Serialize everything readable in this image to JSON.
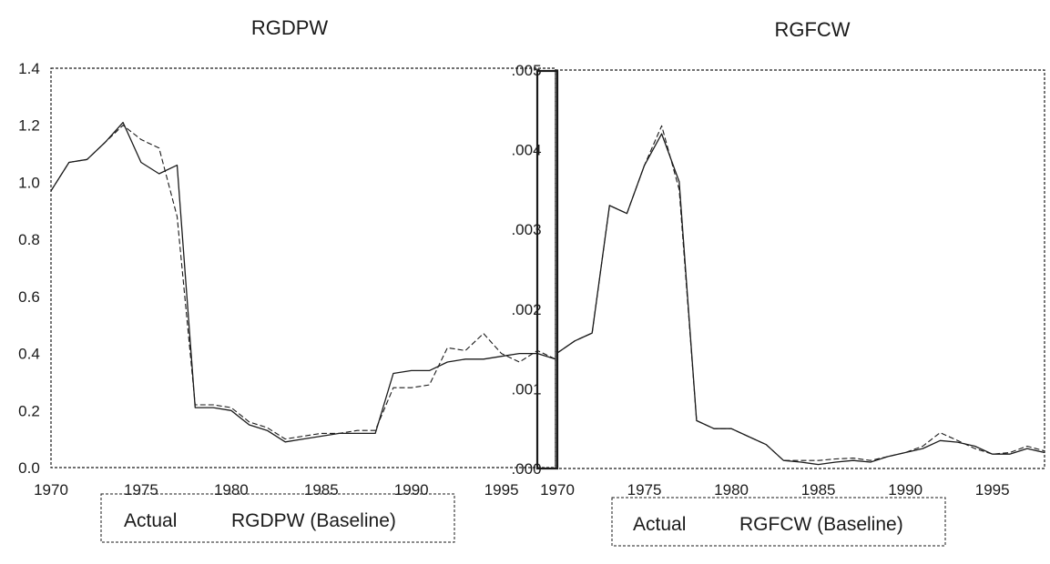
{
  "chart_data": [
    {
      "type": "line",
      "title": "RGDPW",
      "xlabel": "",
      "ylabel": "",
      "xlim": [
        1970,
        1998
      ],
      "ylim": [
        0.0,
        1.4
      ],
      "x_ticks": [
        "1970",
        "1975",
        "1980",
        "1985",
        "1990",
        "1995"
      ],
      "y_ticks": [
        "0.0",
        "0.2",
        "0.4",
        "0.6",
        "0.8",
        "1.0",
        "1.2",
        "1.4"
      ],
      "grid": false,
      "legend": {
        "placement": "bottom",
        "entries": [
          "Actual",
          "RGDPW (Baseline)"
        ]
      },
      "series": [
        {
          "name": "Actual",
          "color": "#1a1a1a",
          "dash": "solid",
          "x": [
            1970,
            1971,
            1972,
            1973,
            1974,
            1975,
            1976,
            1977,
            1978,
            1979,
            1980,
            1981,
            1982,
            1983,
            1984,
            1985,
            1986,
            1987,
            1988,
            1989,
            1990,
            1991,
            1992,
            1993,
            1994,
            1995,
            1996,
            1997,
            1998
          ],
          "y": [
            0.97,
            1.07,
            1.08,
            1.14,
            1.21,
            1.07,
            1.03,
            1.06,
            0.21,
            0.21,
            0.2,
            0.15,
            0.13,
            0.09,
            0.1,
            0.11,
            0.12,
            0.12,
            0.12,
            0.33,
            0.34,
            0.34,
            0.37,
            0.38,
            0.38,
            0.39,
            0.4,
            0.4,
            0.38
          ]
        },
        {
          "name": "RGDPW (Baseline)",
          "color": "#1a1a1a",
          "dash": "dashed",
          "x": [
            1970,
            1971,
            1972,
            1973,
            1974,
            1975,
            1976,
            1977,
            1978,
            1979,
            1980,
            1981,
            1982,
            1983,
            1984,
            1985,
            1986,
            1987,
            1988,
            1989,
            1990,
            1991,
            1992,
            1993,
            1994,
            1995,
            1996,
            1997,
            1998
          ],
          "y": [
            0.97,
            1.07,
            1.08,
            1.14,
            1.2,
            1.15,
            1.12,
            0.88,
            0.22,
            0.22,
            0.21,
            0.16,
            0.14,
            0.1,
            0.11,
            0.12,
            0.12,
            0.13,
            0.13,
            0.28,
            0.28,
            0.29,
            0.42,
            0.41,
            0.47,
            0.4,
            0.37,
            0.41,
            0.38
          ]
        }
      ]
    },
    {
      "type": "line",
      "title": "RGFCW",
      "xlabel": "",
      "ylabel": "",
      "xlim": [
        1970,
        1998
      ],
      "ylim": [
        0.0,
        0.005
      ],
      "x_ticks": [
        "1970",
        "1975",
        "1980",
        "1985",
        "1990",
        "1995"
      ],
      "y_ticks": [
        ".000",
        ".001",
        ".002",
        ".003",
        ".004",
        ".005"
      ],
      "grid": false,
      "legend": {
        "placement": "bottom",
        "entries": [
          "Actual",
          "RGFCW (Baseline)"
        ]
      },
      "series": [
        {
          "name": "Actual",
          "color": "#1a1a1a",
          "dash": "solid",
          "x": [
            1970,
            1971,
            1972,
            1973,
            1974,
            1975,
            1976,
            1977,
            1978,
            1979,
            1980,
            1981,
            1982,
            1983,
            1984,
            1985,
            1986,
            1987,
            1988,
            1989,
            1990,
            1991,
            1992,
            1993,
            1994,
            1995,
            1996,
            1997,
            1998
          ],
          "y": [
            0.00145,
            0.0016,
            0.0017,
            0.0033,
            0.0032,
            0.0038,
            0.0042,
            0.0036,
            0.0006,
            0.0005,
            0.0005,
            0.0004,
            0.0003,
            0.0001,
            8e-05,
            5e-05,
            8e-05,
            0.0001,
            8e-05,
            0.00015,
            0.0002,
            0.00025,
            0.00035,
            0.00033,
            0.00028,
            0.00018,
            0.00018,
            0.00025,
            0.0002
          ]
        },
        {
          "name": "RGFCW (Baseline)",
          "color": "#1a1a1a",
          "dash": "dashed",
          "x": [
            1970,
            1971,
            1972,
            1973,
            1974,
            1975,
            1976,
            1977,
            1978,
            1979,
            1980,
            1981,
            1982,
            1983,
            1984,
            1985,
            1986,
            1987,
            1988,
            1989,
            1990,
            1991,
            1992,
            1993,
            1994,
            1995,
            1996,
            1997,
            1998
          ],
          "y": [
            0.00145,
            0.0016,
            0.0017,
            0.0033,
            0.0032,
            0.0038,
            0.0043,
            0.0035,
            0.0006,
            0.0005,
            0.0005,
            0.0004,
            0.0003,
            0.0001,
            0.0001,
            0.0001,
            0.00012,
            0.00013,
            0.0001,
            0.00015,
            0.0002,
            0.00028,
            0.00045,
            0.00035,
            0.00025,
            0.00018,
            0.0002,
            0.00028,
            0.00022
          ]
        }
      ]
    }
  ]
}
